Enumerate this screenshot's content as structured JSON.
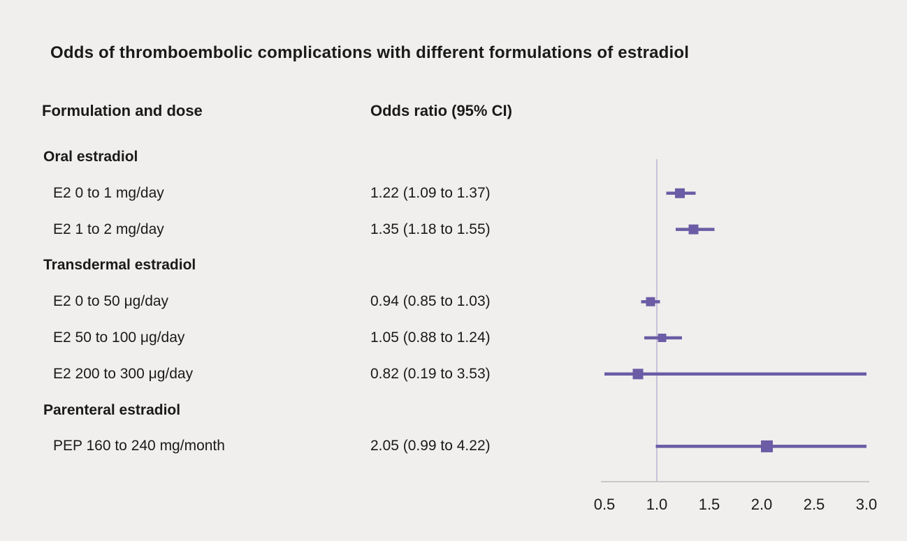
{
  "title": "Odds of thromboembolic complications with different formulations of estradiol",
  "columns": {
    "formulation": "Formulation and dose",
    "odds_ratio": "Odds ratio (95% CI)"
  },
  "chart_data": {
    "type": "forest",
    "title": "Odds of thromboembolic complications with different formulations of estradiol",
    "x_axis": {
      "min": 0.5,
      "max": 3.0,
      "tick_values": [
        0.5,
        1.0,
        1.5,
        2.0,
        2.5,
        3.0
      ],
      "ticks": [
        "0.5",
        "1.0",
        "1.5",
        "2.0",
        "2.5",
        "3.0"
      ],
      "reference_line": 1.0,
      "grid": false
    },
    "rows": [
      {
        "type": "group",
        "label": "Oral estradiol"
      },
      {
        "type": "item",
        "label": "E2 0 to 1 mg/day",
        "or_text": "1.22 (1.09 to 1.37)",
        "estimate": 1.22,
        "ci_low": 1.09,
        "ci_high": 1.37,
        "marker_size": 14
      },
      {
        "type": "item",
        "label": "E2 1 to 2 mg/day",
        "or_text": "1.35 (1.18 to 1.55)",
        "estimate": 1.35,
        "ci_low": 1.18,
        "ci_high": 1.55,
        "marker_size": 14
      },
      {
        "type": "group",
        "label": "Transdermal estradiol"
      },
      {
        "type": "item",
        "label": "E2 0 to 50 μg/day",
        "or_text": "0.94 (0.85 to 1.03)",
        "estimate": 0.94,
        "ci_low": 0.85,
        "ci_high": 1.03,
        "marker_size": 13
      },
      {
        "type": "item",
        "label": "E2 50 to 100 μg/day",
        "or_text": "1.05 (0.88 to 1.24)",
        "estimate": 1.05,
        "ci_low": 0.88,
        "ci_high": 1.24,
        "marker_size": 12
      },
      {
        "type": "item",
        "label": "E2 200 to 300 μg/day",
        "or_text": "0.82 (0.19 to 3.53)",
        "estimate": 0.82,
        "ci_low": 0.19,
        "ci_high": 3.53,
        "marker_size": 15
      },
      {
        "type": "group",
        "label": "Parenteral estradiol"
      },
      {
        "type": "item",
        "label": "PEP 160 to 240 mg/month",
        "or_text": "2.05 (0.99 to 4.22)",
        "estimate": 2.05,
        "ci_low": 0.99,
        "ci_high": 4.22,
        "marker_size": 17
      }
    ],
    "colors": {
      "marker": "#6b5ca5",
      "reference_line": "#c7c3d9",
      "axis": "#c8c8c8",
      "text": "#1a1a1a",
      "background": "#f0efed"
    }
  }
}
